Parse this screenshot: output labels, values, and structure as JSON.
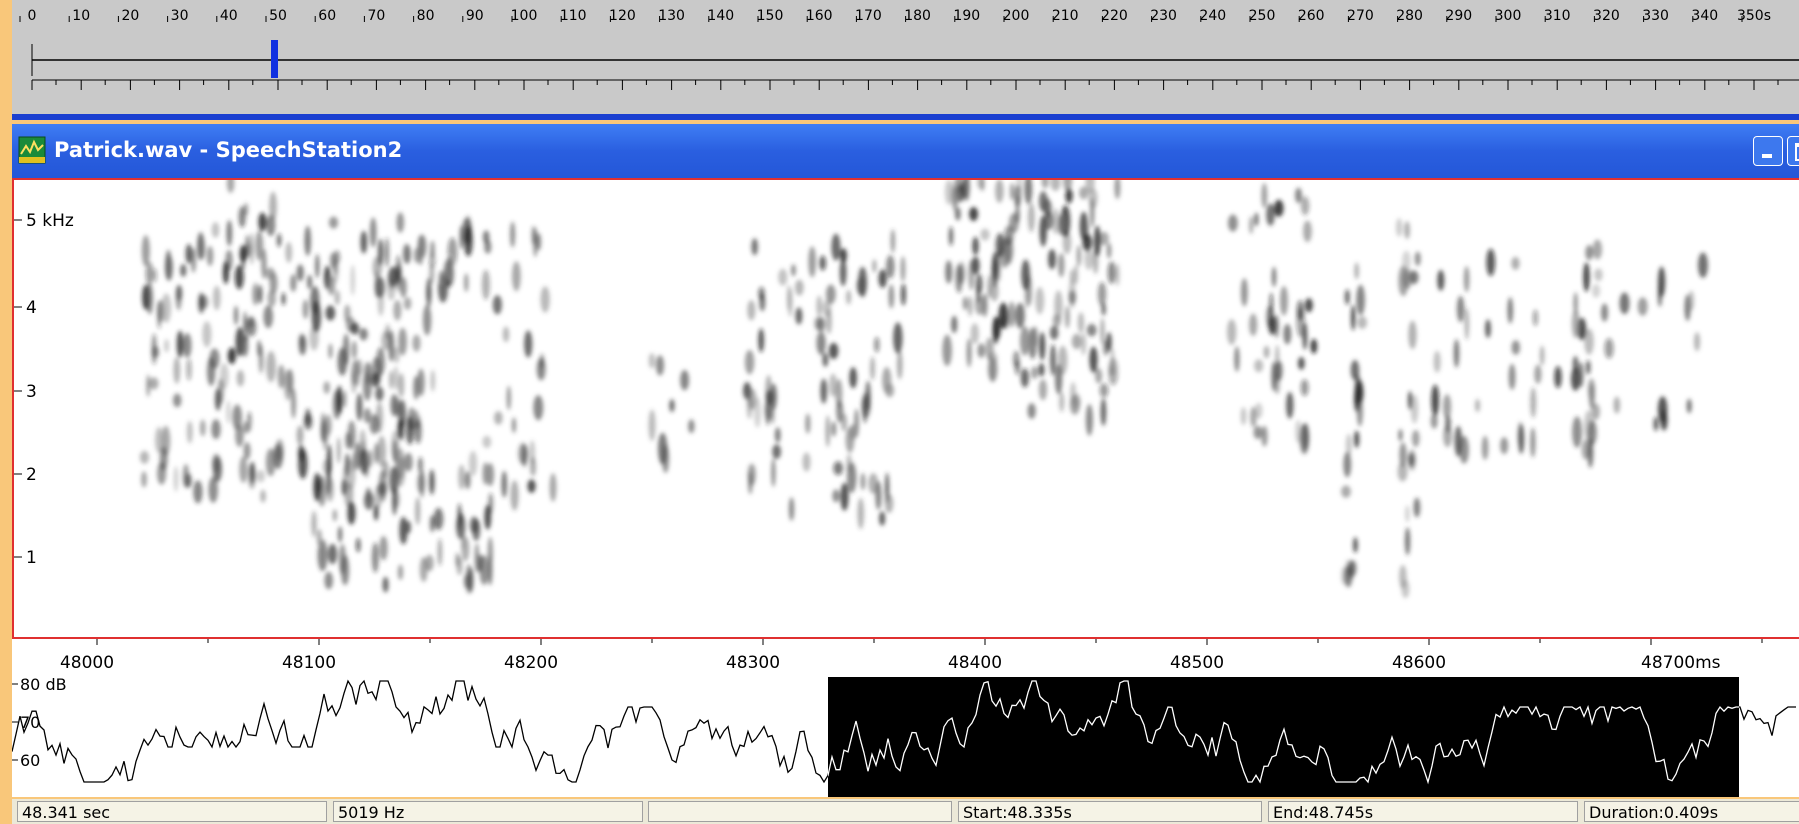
{
  "ruler": {
    "labels": [
      "0",
      "10",
      "20",
      "30",
      "40",
      "50",
      "60",
      "70",
      "80",
      "90",
      "100",
      "110",
      "120",
      "130",
      "140",
      "150",
      "160",
      "170",
      "180",
      "190",
      "200",
      "210",
      "220",
      "230",
      "240",
      "250",
      "260",
      "270",
      "280",
      "290",
      "300",
      "310",
      "320",
      "330",
      "340",
      "350s"
    ]
  },
  "window": {
    "title": "Patrick.wav - SpeechStation2"
  },
  "spectrogram": {
    "freq_labels": [
      "5 kHz",
      "4",
      "3",
      "2",
      "1"
    ],
    "time_labels": [
      "48000",
      "48100",
      "48200",
      "48300",
      "48400",
      "48500",
      "48600",
      "48700ms"
    ]
  },
  "waveform": {
    "db_labels": [
      "80 dB",
      "70",
      "60"
    ]
  },
  "status": {
    "fields": [
      "48.341 sec",
      "5019 Hz",
      "Start:48.335s",
      "End:48.745s",
      "Duration:0.409s"
    ]
  }
}
